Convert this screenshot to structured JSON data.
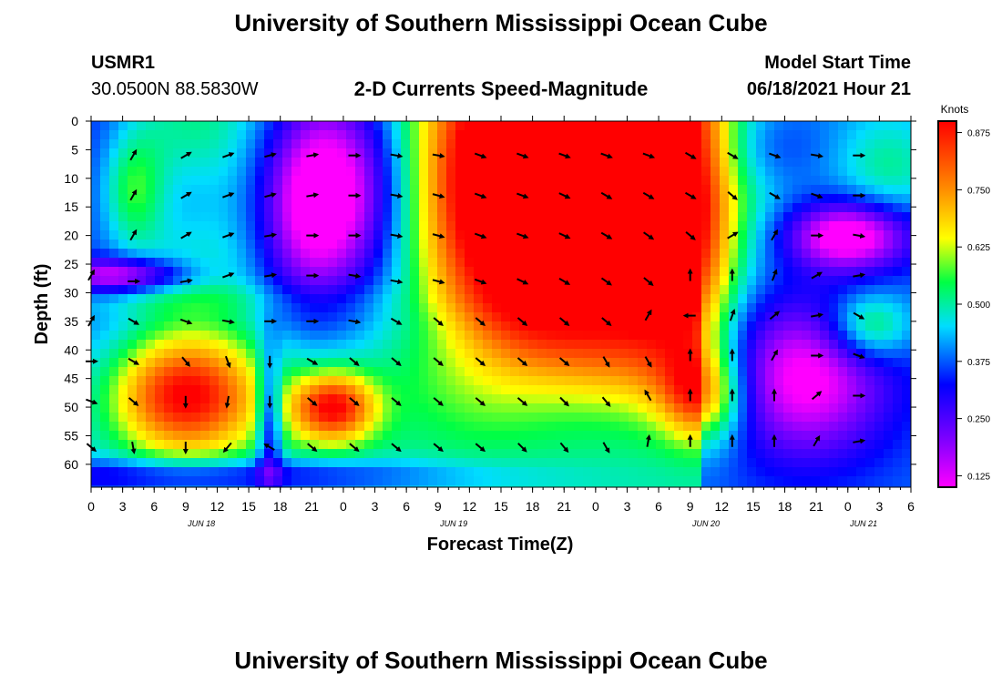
{
  "header": {
    "title_top": "University of Southern Mississippi Ocean Cube",
    "station_id": "USMR1",
    "coordinates": "30.0500N  88.5830W",
    "chart_title": "2-D Currents Speed-Magnitude",
    "model_label": "Model Start Time",
    "model_time": "06/18/2021 Hour 21",
    "title_bottom": "University of Southern Mississippi Ocean Cube"
  },
  "chart_data": {
    "type": "heatmap",
    "title": "2-D Currents Speed-Magnitude",
    "xlabel": "Forecast Time(Z)",
    "ylabel": "Depth (ft)",
    "xlim": [
      0,
      78
    ],
    "ylim": [
      0,
      64
    ],
    "x_ticks": [
      0,
      3,
      6,
      9,
      12,
      15,
      18,
      21,
      24,
      27,
      30,
      33,
      36,
      39,
      42,
      45,
      48,
      51,
      54,
      57,
      60,
      63,
      66,
      69,
      72,
      75,
      78
    ],
    "x_tick_labels": [
      "0",
      "3",
      "6",
      "9",
      "12",
      "15",
      "18",
      "21",
      "0",
      "3",
      "6",
      "9",
      "12",
      "15",
      "18",
      "21",
      "0",
      "3",
      "6",
      "9",
      "12",
      "15",
      "18",
      "21",
      "0",
      "3",
      "6"
    ],
    "date_labels": [
      {
        "x": 10.5,
        "label": "JUN 18"
      },
      {
        "x": 34.5,
        "label": "JUN 19"
      },
      {
        "x": 58.5,
        "label": "JUN 20"
      },
      {
        "x": 73.5,
        "label": "JUN 21"
      }
    ],
    "y_ticks": [
      0,
      5,
      10,
      15,
      20,
      25,
      30,
      35,
      40,
      45,
      50,
      55,
      60
    ],
    "y_tick_labels": [
      "0",
      "5",
      "10",
      "15",
      "20",
      "25",
      "30",
      "35",
      "40",
      "45",
      "50",
      "55",
      "60"
    ],
    "colorbar": {
      "title": "Knots",
      "min": 0.1,
      "max": 0.9,
      "ticks": [
        0.125,
        0.25,
        0.375,
        0.5,
        0.625,
        0.75,
        0.875
      ],
      "tick_labels": [
        "0.125",
        "0.250",
        "0.375",
        "0.500",
        "0.625",
        "0.750",
        "0.875"
      ]
    },
    "speed_features": [
      {
        "t": 0,
        "d": 5,
        "ht": 6,
        "hd": 50,
        "v": -0.15
      },
      {
        "t": 4,
        "d": 12,
        "ht": 3,
        "hd": 10,
        "v": 0.18
      },
      {
        "t": 9,
        "d": 8,
        "ht": 5,
        "hd": 12,
        "v": 0.08
      },
      {
        "t": 9,
        "d": 12,
        "ht": 5,
        "hd": 10,
        "v": -0.12
      },
      {
        "t": 20,
        "d": 15,
        "ht": 5,
        "hd": 20,
        "v": -0.28
      },
      {
        "t": 25,
        "d": 12,
        "ht": 6,
        "hd": 20,
        "v": -0.35
      },
      {
        "t": 3,
        "d": 27,
        "ht": 6,
        "hd": 3,
        "v": -0.28
      },
      {
        "t": 6,
        "d": 31,
        "ht": 20,
        "hd": 3,
        "v": 0.05
      },
      {
        "t": 9,
        "d": 48,
        "ht": 7,
        "hd": 10,
        "v": 0.42
      },
      {
        "t": 23,
        "d": 50,
        "ht": 4,
        "hd": 6,
        "v": 0.42
      },
      {
        "t": 17,
        "d": 52,
        "ht": 1.2,
        "hd": 12,
        "v": -0.25
      },
      {
        "t": 11,
        "d": 62,
        "ht": 25,
        "hd": 3,
        "v": -0.2
      },
      {
        "t": 48,
        "d": 8,
        "ht": 14,
        "hd": 18,
        "v": 0.4
      },
      {
        "t": 40,
        "d": 20,
        "ht": 10,
        "hd": 20,
        "v": 0.1
      },
      {
        "t": 56,
        "d": 25,
        "ht": 5,
        "hd": 12,
        "v": 0.12
      },
      {
        "t": 37,
        "d": 45,
        "ht": 8,
        "hd": 12,
        "v": 0.08
      },
      {
        "t": 58,
        "d": 48,
        "ht": 4,
        "hd": 8,
        "v": 0.25
      },
      {
        "t": 72,
        "d": 20,
        "ht": 6,
        "hd": 6,
        "v": -0.35
      },
      {
        "t": 68,
        "d": 45,
        "ht": 8,
        "hd": 14,
        "v": -0.3
      },
      {
        "t": 74,
        "d": 36,
        "ht": 4,
        "hd": 6,
        "v": 0.22
      },
      {
        "t": 76,
        "d": 8,
        "ht": 5,
        "hd": 10,
        "v": 0.12
      },
      {
        "t": 64,
        "d": 5,
        "ht": 6,
        "hd": 8,
        "v": -0.1
      }
    ],
    "vectors": [
      {
        "t": 4,
        "d": 6,
        "deg": -60
      },
      {
        "t": 9,
        "d": 6,
        "deg": -30
      },
      {
        "t": 13,
        "d": 6,
        "deg": -20
      },
      {
        "t": 17,
        "d": 6,
        "deg": -15
      },
      {
        "t": 21,
        "d": 6,
        "deg": -10
      },
      {
        "t": 25,
        "d": 6,
        "deg": 0
      },
      {
        "t": 29,
        "d": 6,
        "deg": 10
      },
      {
        "t": 33,
        "d": 6,
        "deg": 10
      },
      {
        "t": 37,
        "d": 6,
        "deg": 20
      },
      {
        "t": 41,
        "d": 6,
        "deg": 20
      },
      {
        "t": 45,
        "d": 6,
        "deg": 20
      },
      {
        "t": 49,
        "d": 6,
        "deg": 20
      },
      {
        "t": 53,
        "d": 6,
        "deg": 20
      },
      {
        "t": 57,
        "d": 6,
        "deg": 30
      },
      {
        "t": 61,
        "d": 6,
        "deg": 30
      },
      {
        "t": 65,
        "d": 6,
        "deg": 20
      },
      {
        "t": 69,
        "d": 6,
        "deg": 10
      },
      {
        "t": 73,
        "d": 6,
        "deg": 0
      },
      {
        "t": 4,
        "d": 13,
        "deg": -60
      },
      {
        "t": 9,
        "d": 13,
        "deg": -30
      },
      {
        "t": 13,
        "d": 13,
        "deg": -20
      },
      {
        "t": 17,
        "d": 13,
        "deg": -15
      },
      {
        "t": 21,
        "d": 13,
        "deg": -10
      },
      {
        "t": 25,
        "d": 13,
        "deg": 0
      },
      {
        "t": 29,
        "d": 13,
        "deg": 10
      },
      {
        "t": 33,
        "d": 13,
        "deg": 15
      },
      {
        "t": 37,
        "d": 13,
        "deg": 20
      },
      {
        "t": 41,
        "d": 13,
        "deg": 20
      },
      {
        "t": 45,
        "d": 13,
        "deg": 25
      },
      {
        "t": 49,
        "d": 13,
        "deg": 30
      },
      {
        "t": 53,
        "d": 13,
        "deg": 30
      },
      {
        "t": 57,
        "d": 13,
        "deg": 30
      },
      {
        "t": 61,
        "d": 13,
        "deg": 40
      },
      {
        "t": 65,
        "d": 13,
        "deg": 30
      },
      {
        "t": 69,
        "d": 13,
        "deg": 20
      },
      {
        "t": 73,
        "d": 13,
        "deg": 0
      },
      {
        "t": 4,
        "d": 20,
        "deg": -60
      },
      {
        "t": 9,
        "d": 20,
        "deg": -30
      },
      {
        "t": 13,
        "d": 20,
        "deg": -20
      },
      {
        "t": 17,
        "d": 20,
        "deg": -10
      },
      {
        "t": 21,
        "d": 20,
        "deg": 0
      },
      {
        "t": 25,
        "d": 20,
        "deg": 0
      },
      {
        "t": 29,
        "d": 20,
        "deg": 10
      },
      {
        "t": 33,
        "d": 20,
        "deg": 15
      },
      {
        "t": 37,
        "d": 20,
        "deg": 20
      },
      {
        "t": 41,
        "d": 20,
        "deg": 20
      },
      {
        "t": 45,
        "d": 20,
        "deg": 25
      },
      {
        "t": 49,
        "d": 20,
        "deg": 30
      },
      {
        "t": 53,
        "d": 20,
        "deg": 35
      },
      {
        "t": 57,
        "d": 20,
        "deg": 40
      },
      {
        "t": 61,
        "d": 20,
        "deg": -30
      },
      {
        "t": 65,
        "d": 20,
        "deg": -60
      },
      {
        "t": 69,
        "d": 20,
        "deg": 0
      },
      {
        "t": 73,
        "d": 20,
        "deg": 10
      },
      {
        "t": 0,
        "d": 27,
        "deg": -60
      },
      {
        "t": 4,
        "d": 28,
        "deg": 0
      },
      {
        "t": 9,
        "d": 28,
        "deg": -10
      },
      {
        "t": 13,
        "d": 27,
        "deg": -20
      },
      {
        "t": 17,
        "d": 27,
        "deg": -10
      },
      {
        "t": 21,
        "d": 27,
        "deg": 0
      },
      {
        "t": 25,
        "d": 27,
        "deg": 10
      },
      {
        "t": 29,
        "d": 28,
        "deg": 10
      },
      {
        "t": 33,
        "d": 28,
        "deg": 15
      },
      {
        "t": 37,
        "d": 28,
        "deg": 20
      },
      {
        "t": 41,
        "d": 28,
        "deg": 25
      },
      {
        "t": 45,
        "d": 28,
        "deg": 30
      },
      {
        "t": 49,
        "d": 28,
        "deg": 35
      },
      {
        "t": 53,
        "d": 28,
        "deg": 40
      },
      {
        "t": 57,
        "d": 27,
        "deg": -90
      },
      {
        "t": 61,
        "d": 27,
        "deg": -90
      },
      {
        "t": 65,
        "d": 27,
        "deg": -70
      },
      {
        "t": 69,
        "d": 27,
        "deg": -30
      },
      {
        "t": 73,
        "d": 27,
        "deg": -10
      },
      {
        "t": 0,
        "d": 35,
        "deg": -60
      },
      {
        "t": 4,
        "d": 35,
        "deg": 30
      },
      {
        "t": 9,
        "d": 35,
        "deg": 20
      },
      {
        "t": 13,
        "d": 35,
        "deg": 10
      },
      {
        "t": 17,
        "d": 35,
        "deg": 0
      },
      {
        "t": 21,
        "d": 35,
        "deg": 0
      },
      {
        "t": 25,
        "d": 35,
        "deg": 10
      },
      {
        "t": 29,
        "d": 35,
        "deg": 30
      },
      {
        "t": 33,
        "d": 35,
        "deg": 40
      },
      {
        "t": 37,
        "d": 35,
        "deg": 40
      },
      {
        "t": 41,
        "d": 35,
        "deg": 40
      },
      {
        "t": 45,
        "d": 35,
        "deg": 40
      },
      {
        "t": 49,
        "d": 35,
        "deg": 40
      },
      {
        "t": 53,
        "d": 34,
        "deg": -60
      },
      {
        "t": 57,
        "d": 34,
        "deg": 180
      },
      {
        "t": 61,
        "d": 34,
        "deg": -70
      },
      {
        "t": 65,
        "d": 34,
        "deg": -40
      },
      {
        "t": 69,
        "d": 34,
        "deg": -10
      },
      {
        "t": 73,
        "d": 34,
        "deg": 30
      },
      {
        "t": 0,
        "d": 42,
        "deg": 0
      },
      {
        "t": 4,
        "d": 42,
        "deg": 30
      },
      {
        "t": 9,
        "d": 42,
        "deg": 50
      },
      {
        "t": 13,
        "d": 42,
        "deg": 70
      },
      {
        "t": 17,
        "d": 42,
        "deg": 90
      },
      {
        "t": 21,
        "d": 42,
        "deg": 30
      },
      {
        "t": 25,
        "d": 42,
        "deg": 40
      },
      {
        "t": 29,
        "d": 42,
        "deg": 40
      },
      {
        "t": 33,
        "d": 42,
        "deg": 40
      },
      {
        "t": 37,
        "d": 42,
        "deg": 40
      },
      {
        "t": 41,
        "d": 42,
        "deg": 40
      },
      {
        "t": 45,
        "d": 42,
        "deg": 40
      },
      {
        "t": 49,
        "d": 42,
        "deg": 60
      },
      {
        "t": 53,
        "d": 42,
        "deg": 60
      },
      {
        "t": 57,
        "d": 41,
        "deg": -90
      },
      {
        "t": 61,
        "d": 41,
        "deg": -90
      },
      {
        "t": 65,
        "d": 41,
        "deg": -60
      },
      {
        "t": 69,
        "d": 41,
        "deg": 0
      },
      {
        "t": 73,
        "d": 41,
        "deg": 20
      },
      {
        "t": 0,
        "d": 49,
        "deg": 20
      },
      {
        "t": 4,
        "d": 49,
        "deg": 40
      },
      {
        "t": 9,
        "d": 49,
        "deg": 90
      },
      {
        "t": 13,
        "d": 49,
        "deg": 100
      },
      {
        "t": 17,
        "d": 49,
        "deg": 90
      },
      {
        "t": 21,
        "d": 49,
        "deg": 40
      },
      {
        "t": 25,
        "d": 49,
        "deg": 40
      },
      {
        "t": 29,
        "d": 49,
        "deg": 40
      },
      {
        "t": 33,
        "d": 49,
        "deg": 40
      },
      {
        "t": 37,
        "d": 49,
        "deg": 40
      },
      {
        "t": 41,
        "d": 49,
        "deg": 40
      },
      {
        "t": 45,
        "d": 49,
        "deg": 45
      },
      {
        "t": 49,
        "d": 49,
        "deg": 50
      },
      {
        "t": 53,
        "d": 48,
        "deg": -120
      },
      {
        "t": 57,
        "d": 48,
        "deg": -90
      },
      {
        "t": 61,
        "d": 48,
        "deg": -90
      },
      {
        "t": 65,
        "d": 48,
        "deg": -90
      },
      {
        "t": 69,
        "d": 48,
        "deg": -40
      },
      {
        "t": 73,
        "d": 48,
        "deg": 0
      },
      {
        "t": 0,
        "d": 57,
        "deg": 40
      },
      {
        "t": 4,
        "d": 57,
        "deg": 80
      },
      {
        "t": 9,
        "d": 57,
        "deg": 90
      },
      {
        "t": 13,
        "d": 57,
        "deg": 130
      },
      {
        "t": 17,
        "d": 57,
        "deg": -150
      },
      {
        "t": 21,
        "d": 57,
        "deg": 40
      },
      {
        "t": 25,
        "d": 57,
        "deg": 40
      },
      {
        "t": 29,
        "d": 57,
        "deg": 40
      },
      {
        "t": 33,
        "d": 57,
        "deg": 40
      },
      {
        "t": 37,
        "d": 57,
        "deg": 40
      },
      {
        "t": 41,
        "d": 57,
        "deg": 45
      },
      {
        "t": 45,
        "d": 57,
        "deg": 50
      },
      {
        "t": 49,
        "d": 57,
        "deg": 60
      },
      {
        "t": 53,
        "d": 56,
        "deg": -80
      },
      {
        "t": 57,
        "d": 56,
        "deg": -90
      },
      {
        "t": 61,
        "d": 56,
        "deg": -90
      },
      {
        "t": 65,
        "d": 56,
        "deg": -90
      },
      {
        "t": 69,
        "d": 56,
        "deg": -60
      },
      {
        "t": 73,
        "d": 56,
        "deg": -10
      }
    ]
  }
}
